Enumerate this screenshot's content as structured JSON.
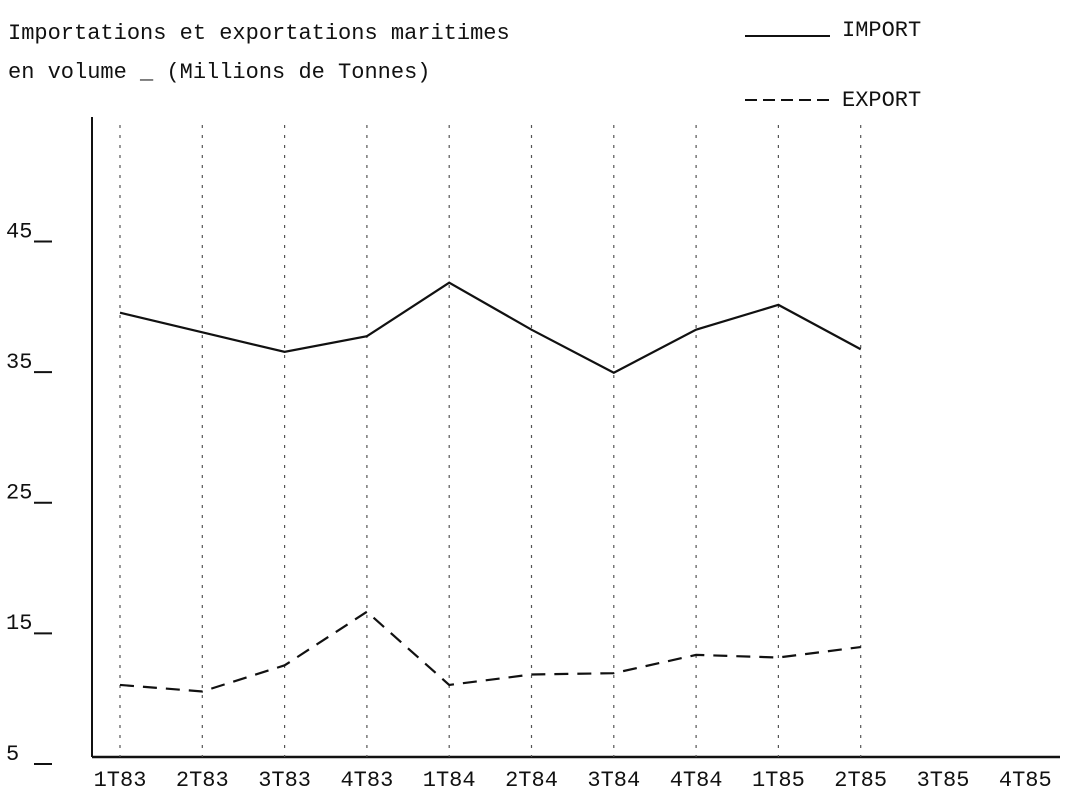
{
  "chart_data": {
    "type": "line",
    "title": "Importations et exportations maritimes",
    "subtitle": "en volume _ (Millions de Tonnes)",
    "categories": [
      "1T83",
      "2T83",
      "3T83",
      "4T83",
      "1T84",
      "2T84",
      "3T84",
      "4T84",
      "1T85",
      "2T85",
      "3T85",
      "4T85"
    ],
    "series": [
      {
        "name": "IMPORT",
        "color": "#111111",
        "dash": "solid",
        "values": [
          39.4,
          37.9,
          36.4,
          37.6,
          41.7,
          38.1,
          34.8,
          38.1,
          40.0,
          36.6,
          null,
          null
        ]
      },
      {
        "name": "EXPORT",
        "color": "#111111",
        "dash": "dashed",
        "values": [
          10.9,
          10.4,
          12.4,
          16.5,
          10.9,
          11.7,
          11.8,
          13.2,
          13.0,
          13.8,
          null,
          null
        ]
      }
    ],
    "ylim": [
      5,
      54
    ],
    "yticks": [
      5,
      15,
      25,
      35,
      45
    ],
    "grid": true
  }
}
